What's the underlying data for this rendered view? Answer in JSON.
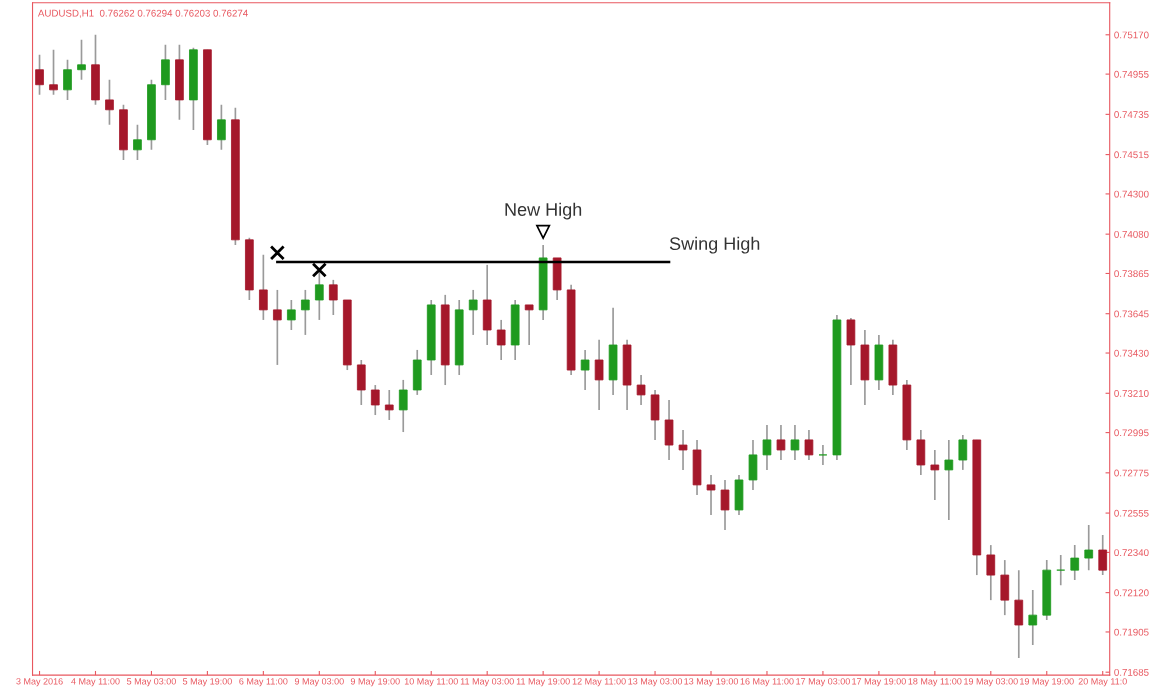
{
  "chart_data": {
    "type": "candlestick",
    "title": "AUDUSD,H1  0.76262 0.76294 0.76203 0.76274",
    "categories": [
      "3 May 2016",
      null,
      null,
      null,
      "4 May 11:00",
      null,
      null,
      null,
      "5 May 03:00",
      null,
      null,
      null,
      "5 May 19:00",
      null,
      null,
      null,
      "6 May 11:00",
      null,
      null,
      null,
      "9 May 03:00",
      null,
      null,
      null,
      "9 May 19:00",
      null,
      null,
      null,
      "10 May 11:00",
      null,
      null,
      null,
      "11 May 03:00",
      null,
      null,
      null,
      "11 May 19:00",
      null,
      null,
      null,
      "12 May 11:00",
      null,
      null,
      null,
      "13 May 03:00",
      null,
      null,
      null,
      "13 May 19:00",
      null,
      null,
      null,
      "16 May 11:00",
      null,
      null,
      null,
      "17 May 03:00",
      null,
      null,
      null,
      "17 May 19:00",
      null,
      null,
      null,
      "18 May 11:00",
      null,
      null,
      null,
      "19 May 03:00",
      null,
      null,
      null,
      "19 May 19:00",
      null,
      null,
      null,
      "20 May 11:0"
    ],
    "ohlc": [
      [
        0.74979,
        0.75061,
        0.74842,
        0.74897
      ],
      [
        0.74897,
        0.75088,
        0.74842,
        0.74869
      ],
      [
        0.74869,
        0.75033,
        0.74814,
        0.74979
      ],
      [
        0.74979,
        0.75143,
        0.74924,
        0.75006
      ],
      [
        0.75006,
        0.7517,
        0.74787,
        0.74814
      ],
      [
        0.74814,
        0.74924,
        0.74678,
        0.7476
      ],
      [
        0.7476,
        0.74787,
        0.74486,
        0.74541
      ],
      [
        0.74541,
        0.74678,
        0.74486,
        0.74596
      ],
      [
        0.74596,
        0.74924,
        0.74541,
        0.74897
      ],
      [
        0.74897,
        0.75115,
        0.74814,
        0.75033
      ],
      [
        0.75033,
        0.75115,
        0.74705,
        0.74814
      ],
      [
        0.74814,
        0.75099,
        0.7465,
        0.75088
      ],
      [
        0.75088,
        0.75088,
        0.74568,
        0.74596
      ],
      [
        0.74596,
        0.74787,
        0.74541,
        0.74705
      ],
      [
        0.74705,
        0.74771,
        0.74021,
        0.74049
      ],
      [
        0.74049,
        0.7406,
        0.7372,
        0.73775
      ],
      [
        0.73775,
        0.73967,
        0.73611,
        0.73666
      ],
      [
        0.73666,
        0.73775,
        0.73365,
        0.73611
      ],
      [
        0.73611,
        0.7372,
        0.73556,
        0.73666
      ],
      [
        0.73666,
        0.73775,
        0.73529,
        0.7372
      ],
      [
        0.7372,
        0.73874,
        0.73611,
        0.73803
      ],
      [
        0.73803,
        0.7383,
        0.73638,
        0.7372
      ],
      [
        0.7372,
        0.7372,
        0.73337,
        0.73365
      ],
      [
        0.73365,
        0.73392,
        0.73146,
        0.73228
      ],
      [
        0.73228,
        0.73255,
        0.73091,
        0.73146
      ],
      [
        0.73146,
        0.73228,
        0.73064,
        0.73119
      ],
      [
        0.73119,
        0.73283,
        0.72998,
        0.73228
      ],
      [
        0.73228,
        0.73447,
        0.73201,
        0.73392
      ],
      [
        0.73392,
        0.7372,
        0.7331,
        0.73693
      ],
      [
        0.73693,
        0.73748,
        0.73255,
        0.73365
      ],
      [
        0.73365,
        0.7372,
        0.7331,
        0.73666
      ],
      [
        0.73666,
        0.73775,
        0.73529,
        0.7372
      ],
      [
        0.7372,
        0.73912,
        0.73474,
        0.73556
      ],
      [
        0.73556,
        0.73611,
        0.73392,
        0.73474
      ],
      [
        0.73474,
        0.7372,
        0.73392,
        0.73693
      ],
      [
        0.73693,
        0.73693,
        0.73474,
        0.73666
      ],
      [
        0.73666,
        0.74021,
        0.73611,
        0.7395
      ],
      [
        0.7395,
        0.7395,
        0.7372,
        0.73775
      ],
      [
        0.73775,
        0.73803,
        0.7331,
        0.73337
      ],
      [
        0.73337,
        0.73447,
        0.73228,
        0.73392
      ],
      [
        0.73392,
        0.73502,
        0.73119,
        0.73283
      ],
      [
        0.73283,
        0.73677,
        0.73201,
        0.73474
      ],
      [
        0.73474,
        0.73502,
        0.73119,
        0.73255
      ],
      [
        0.73255,
        0.7331,
        0.73146,
        0.73201
      ],
      [
        0.73201,
        0.73228,
        0.72955,
        0.73064
      ],
      [
        0.73064,
        0.73173,
        0.72845,
        0.72927
      ],
      [
        0.72927,
        0.73009,
        0.72791,
        0.729
      ],
      [
        0.729,
        0.72955,
        0.72654,
        0.72709
      ],
      [
        0.72709,
        0.72763,
        0.72544,
        0.72681
      ],
      [
        0.72681,
        0.72736,
        0.72462,
        0.72572
      ],
      [
        0.72572,
        0.72763,
        0.72544,
        0.72736
      ],
      [
        0.72736,
        0.72955,
        0.72681,
        0.72873
      ],
      [
        0.72873,
        0.73037,
        0.72791,
        0.72955
      ],
      [
        0.72955,
        0.73037,
        0.72845,
        0.729
      ],
      [
        0.729,
        0.73037,
        0.72845,
        0.72955
      ],
      [
        0.72955,
        0.73009,
        0.72845,
        0.72873
      ],
      [
        0.72873,
        0.72927,
        0.72818,
        0.72873
      ],
      [
        0.72873,
        0.73638,
        0.72845,
        0.73611
      ],
      [
        0.73611,
        0.73622,
        0.73255,
        0.73474
      ],
      [
        0.73474,
        0.73556,
        0.73146,
        0.73283
      ],
      [
        0.73283,
        0.73529,
        0.73228,
        0.73474
      ],
      [
        0.73474,
        0.73502,
        0.73201,
        0.73255
      ],
      [
        0.73255,
        0.73283,
        0.729,
        0.72955
      ],
      [
        0.72955,
        0.73009,
        0.72763,
        0.72818
      ],
      [
        0.72818,
        0.729,
        0.72627,
        0.72791
      ],
      [
        0.72791,
        0.72955,
        0.72517,
        0.72845
      ],
      [
        0.72845,
        0.72982,
        0.72791,
        0.72955
      ],
      [
        0.72955,
        0.72955,
        0.72216,
        0.72326
      ],
      [
        0.72326,
        0.7238,
        0.72079,
        0.72216
      ],
      [
        0.72216,
        0.72298,
        0.71997,
        0.72079
      ],
      [
        0.72079,
        0.72243,
        0.71762,
        0.71943
      ],
      [
        0.71943,
        0.72134,
        0.71833,
        0.71997
      ],
      [
        0.71997,
        0.72298,
        0.7197,
        0.72243
      ],
      [
        0.72243,
        0.72326,
        0.72161,
        0.72243
      ],
      [
        0.72243,
        0.7238,
        0.72189,
        0.72309
      ],
      [
        0.72309,
        0.7249,
        0.72243,
        0.72353
      ],
      [
        0.72353,
        0.72435,
        0.72216,
        0.72243
      ]
    ],
    "series": [
      {
        "type": "line",
        "name": "Swing High",
        "color": "#000000",
        "values": [
          null,
          null,
          null,
          null,
          null,
          null,
          null,
          null,
          null,
          null,
          null,
          null,
          null,
          null,
          null,
          null,
          null,
          0.73928,
          0.73928,
          0.73928,
          0.73928,
          0.73928,
          0.73928,
          0.73928,
          0.73928,
          0.73928,
          0.73928,
          0.73928,
          0.73928,
          0.73928,
          0.73928,
          0.73928,
          0.73928,
          0.73928,
          0.73928,
          0.73928,
          0.73928,
          0.73928,
          0.73928,
          0.73928,
          0.73928,
          0.73928,
          0.73928,
          0.73928,
          0.73928,
          0.73928,
          null,
          null,
          null,
          null,
          null,
          null,
          null,
          null,
          null,
          null,
          null,
          null,
          null,
          null,
          null,
          null,
          null,
          null,
          null,
          null,
          null,
          null,
          null,
          null,
          null,
          null,
          null,
          null,
          null,
          null,
          null
        ]
      },
      {
        "type": "scatter",
        "marker": "cross",
        "color": "#000000",
        "values": [
          null,
          null,
          null,
          null,
          null,
          null,
          null,
          null,
          null,
          null,
          null,
          null,
          null,
          null,
          null,
          null,
          null,
          0.73978,
          null,
          null,
          0.73884,
          null,
          null,
          null,
          null,
          null,
          null,
          null,
          null,
          null,
          null,
          null,
          null,
          null,
          null,
          null,
          null,
          null,
          null,
          null,
          null,
          null,
          null,
          null,
          null,
          null,
          null,
          null,
          null,
          null,
          null,
          null,
          null,
          null,
          null,
          null,
          null,
          null,
          null,
          null,
          null,
          null,
          null,
          null,
          null,
          null,
          null,
          null,
          null,
          null,
          null,
          null,
          null,
          null,
          null,
          null,
          null
        ]
      },
      {
        "type": "scatter",
        "marker": "triangle",
        "name": "New High",
        "color": "#000000",
        "values": [
          null,
          null,
          null,
          null,
          null,
          null,
          null,
          null,
          null,
          null,
          null,
          null,
          null,
          null,
          null,
          null,
          null,
          null,
          null,
          null,
          null,
          null,
          null,
          null,
          null,
          null,
          null,
          null,
          null,
          null,
          null,
          null,
          null,
          null,
          null,
          null,
          0.74092,
          null,
          null,
          null,
          null,
          null,
          null,
          null,
          null,
          null,
          null,
          null,
          null,
          null,
          null,
          null,
          null,
          null,
          null,
          null,
          null,
          null,
          null,
          null,
          null,
          null,
          null,
          null,
          null,
          null,
          null,
          null,
          null,
          null,
          null,
          null,
          null,
          null,
          null,
          null,
          null
        ]
      }
    ],
    "ylim": [
      0.71669,
      0.75345
    ],
    "yticks": [
      {
        "value": 0.7517,
        "label": "0.75170"
      },
      {
        "value": 0.74955,
        "label": "0.74955"
      },
      {
        "value": 0.74735,
        "label": "0.74735"
      },
      {
        "value": 0.74515,
        "label": "0.74515"
      },
      {
        "value": 0.743,
        "label": "0.74300"
      },
      {
        "value": 0.7408,
        "label": "0.74080"
      },
      {
        "value": 0.73865,
        "label": "0.73865"
      },
      {
        "value": 0.73645,
        "label": "0.73645"
      },
      {
        "value": 0.7343,
        "label": "0.73430"
      },
      {
        "value": 0.7321,
        "label": "0.73210"
      },
      {
        "value": 0.72995,
        "label": "0.72995"
      },
      {
        "value": 0.72775,
        "label": "0.72775"
      },
      {
        "value": 0.72555,
        "label": "0.72555"
      },
      {
        "value": 0.7234,
        "label": "0.72340"
      },
      {
        "value": 0.7212,
        "label": "0.72120"
      },
      {
        "value": 0.71905,
        "label": "0.71905"
      },
      {
        "value": 0.71685,
        "label": "0.71685"
      }
    ],
    "grid": false,
    "legend": false
  }
}
